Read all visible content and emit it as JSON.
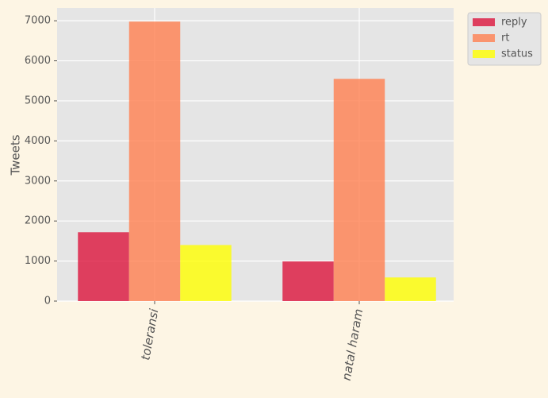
{
  "chart_data": {
    "type": "bar",
    "y_label": "Tweets",
    "categories": [
      "toleransi",
      "natal haram"
    ],
    "series": [
      {
        "name": "reply",
        "color": "#dc143c",
        "values": [
          1720,
          990
        ]
      },
      {
        "name": "rt",
        "color": "#ff7f50",
        "values": [
          6980,
          5550
        ]
      },
      {
        "name": "status",
        "color": "#ffff00",
        "values": [
          1400,
          590
        ]
      }
    ],
    "ylim": [
      0,
      7320
    ],
    "yticks": [
      0,
      1000,
      2000,
      3000,
      4000,
      5000,
      6000,
      7000
    ],
    "grid": true,
    "legend": "outside-upper-right"
  }
}
